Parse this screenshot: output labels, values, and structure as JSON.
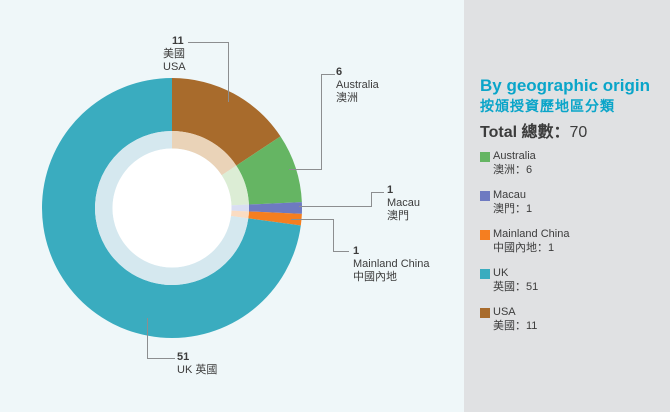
{
  "theme": {
    "left_bg": "#eff7f9",
    "panel_bg": "#e0e1e3",
    "accent_cyan": "#0aa5c9",
    "text_dark": "#3c3c3c",
    "leader_gray": "#8c8e90",
    "donut_hole": "#ffffff"
  },
  "panel": {
    "title_en": "By geographic origin",
    "title_zh": "按頒授資歷地區分類",
    "total_label": "Total 總數：",
    "total_value": "70"
  },
  "chart_data": {
    "type": "donut",
    "title": "By geographic origin 按頒授資歷地區分類",
    "total": 70,
    "legend_position": "right",
    "segments": [
      {
        "name_en": "USA",
        "name_zh": "美國",
        "value": 11,
        "color": "#a86b2c",
        "inner_color": "#ead3b8"
      },
      {
        "name_en": "Australia",
        "name_zh": "澳洲",
        "value": 6,
        "color": "#65b563",
        "inner_color": "#dcedd5"
      },
      {
        "name_en": "Macau",
        "name_zh": "澳門",
        "value": 1,
        "color": "#6e7ac1",
        "inner_color": "#d9def2"
      },
      {
        "name_en": "Mainland China",
        "name_zh": "中國內地",
        "value": 1,
        "color": "#f57e20",
        "inner_color": "#fbdcc2"
      },
      {
        "name_en": "UK",
        "name_zh": "英國",
        "value": 51,
        "color": "#3aacbf",
        "inner_color": "#d5e8ef"
      }
    ],
    "callouts": [
      {
        "id": "usa",
        "lines": [
          "11",
          "美國",
          "USA"
        ]
      },
      {
        "id": "australia",
        "lines": [
          "6",
          "Australia",
          "澳洲"
        ]
      },
      {
        "id": "macau",
        "lines": [
          "1",
          "Macau",
          "澳門"
        ]
      },
      {
        "id": "mainland-china",
        "lines": [
          "1",
          "Mainland China",
          "中國內地"
        ]
      },
      {
        "id": "uk",
        "lines": [
          "51",
          "UK 英國"
        ]
      }
    ]
  },
  "legend": {
    "items": [
      {
        "color": "#65b563",
        "line1": "Australia",
        "line2": "澳洲：6"
      },
      {
        "color": "#6e7ac1",
        "line1": "Macau",
        "line2": "澳門：1"
      },
      {
        "color": "#f57e20",
        "line1": "Mainland China",
        "line2": "中國內地：1"
      },
      {
        "color": "#3aacbf",
        "line1": "UK",
        "line2": "英國：51"
      },
      {
        "color": "#a86b2c",
        "line1": "USA",
        "line2": "美國：11"
      }
    ]
  }
}
